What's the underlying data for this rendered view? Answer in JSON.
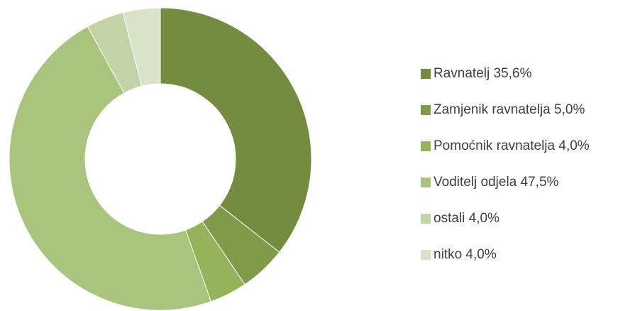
{
  "chart_data": {
    "type": "donut",
    "categories": [
      "Ravnatelj",
      "Zamjenik ravnatelja",
      "Pomoćnik ravnatelja",
      "Voditelj odjela",
      "ostali",
      "nitko"
    ],
    "values": [
      35.6,
      5.0,
      4.0,
      47.5,
      4.0,
      4.0
    ],
    "value_labels": [
      "35,6%",
      "5,0%",
      "4,0%",
      "47,5%",
      "4,0%",
      "4,0%"
    ],
    "colors": [
      "#738c40",
      "#7f9a48",
      "#94b35a",
      "#a9c47d",
      "#c2d4a6",
      "#d8e4c8"
    ],
    "legend": "right"
  }
}
